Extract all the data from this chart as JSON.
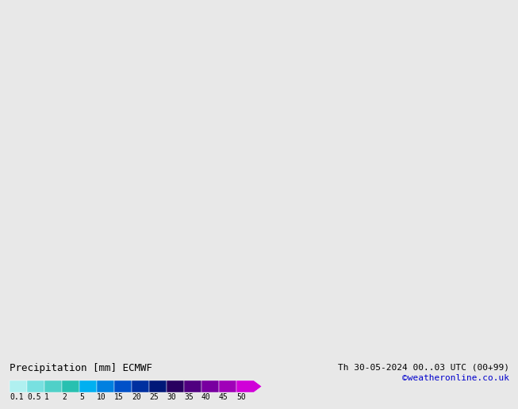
{
  "title_left": "Precipitation [mm] ECMWF",
  "title_right": "Th 30-05-2024 00..03 UTC (00+99)",
  "credit": "©weatheronline.co.uk",
  "colorbar_labels": [
    "0.1",
    "0.5",
    "1",
    "2",
    "5",
    "10",
    "15",
    "20",
    "25",
    "30",
    "35",
    "40",
    "45",
    "50"
  ],
  "colorbar_colors": [
    "#b0f0f0",
    "#78e0e0",
    "#50d0c8",
    "#28c0b0",
    "#00b0f0",
    "#0080e0",
    "#0050c8",
    "#0030a0",
    "#001878",
    "#280060",
    "#500080",
    "#7800a0",
    "#a000b8",
    "#d000d8"
  ],
  "bg_color": "#e8e8e8",
  "land_color": "#c8eec8",
  "sea_color": "#dcdcf0",
  "border_color": "#808080",
  "label_fontsize": 9,
  "credit_color": "#0000cc"
}
